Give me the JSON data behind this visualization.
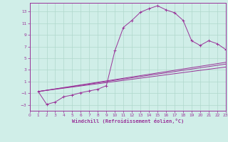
{
  "bg_color": "#d0eee8",
  "grid_color": "#b0d8cc",
  "line_color": "#993399",
  "xlabel": "Windchill (Refroidissement éolien,°C)",
  "xlabel_color": "#993399",
  "tick_color": "#993399",
  "ylim": [
    -4,
    14.5
  ],
  "xlim": [
    0,
    23
  ],
  "yticks": [
    -3,
    -1,
    1,
    3,
    5,
    7,
    9,
    11,
    13
  ],
  "xticks": [
    0,
    1,
    2,
    3,
    4,
    5,
    6,
    7,
    8,
    9,
    10,
    11,
    12,
    13,
    14,
    15,
    16,
    17,
    18,
    19,
    20,
    21,
    22,
    23
  ],
  "series": [
    [
      1,
      -0.7
    ],
    [
      2,
      -2.9
    ],
    [
      3,
      -2.5
    ],
    [
      4,
      -1.6
    ],
    [
      5,
      -1.3
    ],
    [
      6,
      -0.9
    ],
    [
      7,
      -0.6
    ],
    [
      8,
      -0.3
    ],
    [
      9,
      0.3
    ],
    [
      10,
      6.3
    ],
    [
      11,
      10.3
    ],
    [
      12,
      11.5
    ],
    [
      13,
      12.9
    ],
    [
      14,
      13.5
    ],
    [
      15,
      14.0
    ],
    [
      16,
      13.3
    ],
    [
      17,
      12.8
    ],
    [
      18,
      11.5
    ],
    [
      19,
      8.0
    ],
    [
      20,
      7.2
    ],
    [
      21,
      8.0
    ],
    [
      22,
      7.5
    ],
    [
      23,
      6.5
    ]
  ],
  "line2": [
    [
      1,
      -0.7
    ],
    [
      23,
      4.0
    ]
  ],
  "line3": [
    [
      1,
      -0.7
    ],
    [
      23,
      3.5
    ]
  ],
  "line4": [
    [
      1,
      -0.7
    ],
    [
      23,
      4.3
    ]
  ],
  "spine_color": "#993399",
  "figsize": [
    3.2,
    2.0
  ],
  "dpi": 100
}
